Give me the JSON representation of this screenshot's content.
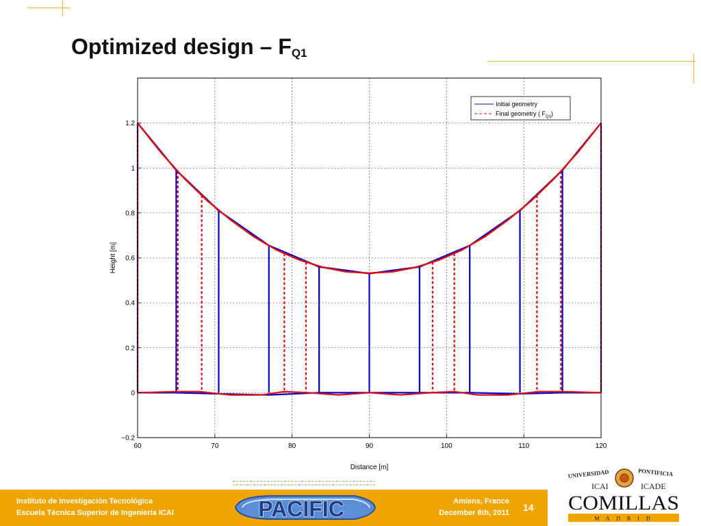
{
  "slide": {
    "title_main": "Optimized design – F",
    "title_sub": "Q1",
    "page_number": "14"
  },
  "footer": {
    "left_line1": "Instituto de Investigación Tecnológica",
    "left_line2": "Escuela Técnica Superior de Ingeniería ICAI",
    "right_line1": "Amiens, France",
    "right_line2": "December 8th, 2011"
  },
  "logos": {
    "pacific": "PACIFIC",
    "comillas_universidad": "UNIVERSIDAD",
    "comillas_pontificia": "PONTIFICIA",
    "comillas_icai": "ICAI",
    "comillas_icade": "ICADE",
    "comillas_name": "COMILLAS",
    "comillas_city": "M A D R I D"
  },
  "colors": {
    "accent": "#f0a500",
    "deco_line": "#f0b53a",
    "initial": "#0000cc",
    "final": "#dd1111",
    "comillas_red": "#b01018"
  },
  "chart_data": {
    "type": "line",
    "xlabel": "Distance [m]",
    "ylabel": "Height [m]",
    "xlim": [
      60,
      120
    ],
    "ylim": [
      -0.2,
      1.4
    ],
    "xticks": [
      60,
      70,
      80,
      90,
      100,
      110,
      120
    ],
    "yticks": [
      -0.2,
      0,
      0.2,
      0.4,
      0.6,
      0.8,
      1,
      1.2
    ],
    "grid": true,
    "legend_position": "top-right",
    "legend": [
      {
        "label": "Initial geometry",
        "style": "solid"
      },
      {
        "label": "Final geometry ( F",
        "label_sub": "Q1",
        "label_end": ")",
        "style": "dashed"
      }
    ],
    "series": [
      {
        "name": "Initial geometry",
        "main_cable": {
          "x": [
            60,
            65,
            70.5,
            77,
            83.5,
            90,
            96.5,
            103,
            109.5,
            115,
            120
          ],
          "y": [
            1.2,
            0.99,
            0.81,
            0.655,
            0.56,
            0.53,
            0.56,
            0.655,
            0.81,
            0.99,
            1.2
          ]
        },
        "deck": {
          "x": [
            60,
            65,
            70.5,
            77,
            83.5,
            90,
            96.5,
            103,
            109.5,
            115,
            120
          ],
          "y": [
            0,
            0,
            -0.005,
            -0.01,
            0,
            0,
            0,
            0,
            -0.005,
            0,
            0
          ]
        },
        "hangers_x": [
          60,
          65,
          70.5,
          77,
          83.5,
          90,
          96.5,
          103,
          109.5,
          115,
          120
        ]
      },
      {
        "name": "Final geometry ( FQ1)",
        "main_cable": {
          "x": [
            60,
            63,
            66,
            69,
            72,
            75,
            78,
            81,
            84,
            87,
            90,
            93,
            96,
            99,
            102,
            105,
            108,
            111,
            114,
            117,
            120
          ],
          "y": [
            1.2,
            1.07,
            0.955,
            0.855,
            0.77,
            0.695,
            0.635,
            0.59,
            0.558,
            0.538,
            0.532,
            0.538,
            0.558,
            0.59,
            0.635,
            0.695,
            0.77,
            0.855,
            0.955,
            1.07,
            1.2
          ]
        },
        "deck": {
          "x": [
            60,
            65,
            68,
            72,
            76,
            79,
            82,
            86,
            90,
            94,
            98,
            101,
            104,
            108,
            112,
            115,
            120
          ],
          "y": [
            0,
            0.005,
            0.005,
            -0.01,
            -0.01,
            0.005,
            0,
            -0.01,
            0,
            -0.01,
            0,
            0.005,
            -0.01,
            -0.01,
            0.005,
            0.005,
            0
          ]
        },
        "hangers_x": [
          60,
          65.2,
          68.3,
          79,
          81.8,
          98.2,
          101,
          111.7,
          114.8,
          120
        ]
      }
    ]
  }
}
